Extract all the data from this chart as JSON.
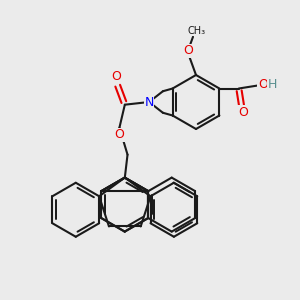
{
  "bg_color": "#ebebeb",
  "bond_color": "#1a1a1a",
  "bond_lw": 1.5,
  "atom_colors": {
    "O": "#e60000",
    "N": "#0000ff",
    "C": "#1a1a1a",
    "H": "#5a9090"
  },
  "font_size": 7.5
}
